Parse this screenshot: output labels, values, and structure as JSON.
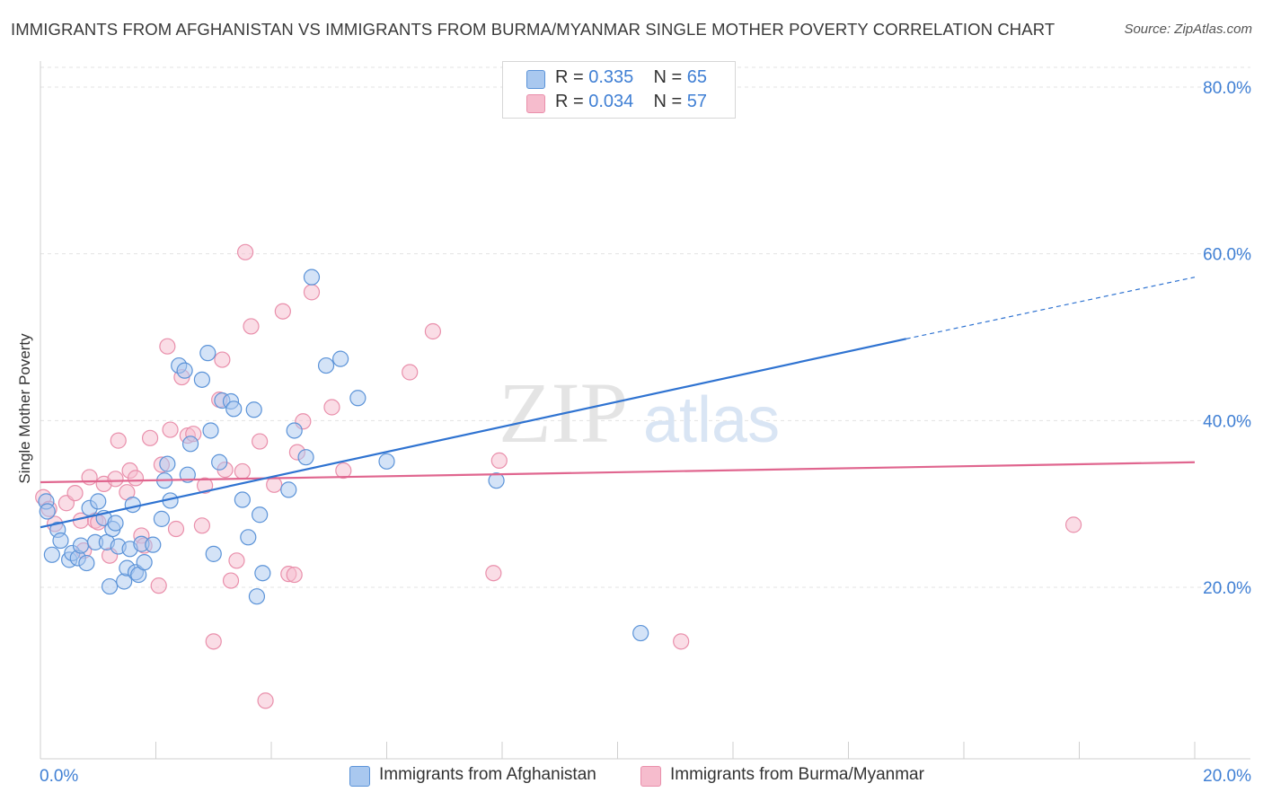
{
  "title": "IMMIGRANTS FROM AFGHANISTAN VS IMMIGRANTS FROM BURMA/MYANMAR SINGLE MOTHER POVERTY CORRELATION CHART",
  "source": "Source: ZipAtlas.com",
  "watermark": {
    "zip": "ZIP",
    "atlas": "atlas"
  },
  "legend": {
    "rows": [
      {
        "r_label": "R =",
        "r_value": "0.335",
        "n_label": "N =",
        "n_value": "65"
      },
      {
        "r_label": "R =",
        "r_value": "0.034",
        "n_label": "N =",
        "n_value": "57"
      }
    ]
  },
  "colors": {
    "blue_fill": "#a9c8ef",
    "blue_stroke": "#5b93d8",
    "blue_line": "#2f73d1",
    "pink_fill": "#f6bccd",
    "pink_stroke": "#e98fab",
    "pink_line": "#e0668f",
    "axis_text": "#3f7fd4",
    "grid": "#e3e3e3"
  },
  "chart_data": {
    "type": "scatter",
    "title": "IMMIGRANTS FROM AFGHANISTAN VS IMMIGRANTS FROM BURMA/MYANMAR SINGLE MOTHER POVERTY CORRELATION CHART",
    "xlabel": "",
    "ylabel": "Single Mother Poverty",
    "xlim": [
      0,
      20
    ],
    "ylim": [
      0,
      82
    ],
    "x_tick_labels": [
      "0.0%",
      "20.0%"
    ],
    "y_ticks": [
      20,
      40,
      60,
      80
    ],
    "y_tick_labels": [
      "20.0%",
      "40.0%",
      "60.0%",
      "80.0%"
    ],
    "grid": true,
    "legend_position": "top-center",
    "series": [
      {
        "name": "Immigrants from Afghanistan",
        "color": "blue",
        "R": 0.335,
        "N": 65,
        "trend": {
          "x0": 0,
          "y0": 27.2,
          "x1": 15.0,
          "y1": 49.8,
          "dashed_to_x": 20.0,
          "dashed_to_y": 57.2
        },
        "points": [
          [
            0.1,
            30.3
          ],
          [
            0.12,
            29.1
          ],
          [
            0.2,
            23.9
          ],
          [
            0.3,
            26.9
          ],
          [
            0.35,
            25.6
          ],
          [
            0.5,
            23.3
          ],
          [
            0.55,
            24.1
          ],
          [
            0.65,
            23.5
          ],
          [
            0.7,
            25.0
          ],
          [
            0.8,
            22.9
          ],
          [
            0.85,
            29.5
          ],
          [
            0.95,
            25.4
          ],
          [
            1.0,
            30.3
          ],
          [
            1.1,
            28.3
          ],
          [
            1.15,
            25.4
          ],
          [
            1.2,
            20.1
          ],
          [
            1.25,
            27.0
          ],
          [
            1.3,
            27.7
          ],
          [
            1.35,
            24.9
          ],
          [
            1.45,
            20.7
          ],
          [
            1.5,
            22.3
          ],
          [
            1.55,
            24.6
          ],
          [
            1.6,
            29.9
          ],
          [
            1.65,
            21.8
          ],
          [
            1.7,
            21.5
          ],
          [
            1.75,
            25.2
          ],
          [
            1.8,
            23.0
          ],
          [
            1.95,
            25.1
          ],
          [
            2.1,
            28.2
          ],
          [
            2.15,
            32.8
          ],
          [
            2.2,
            34.8
          ],
          [
            2.25,
            30.4
          ],
          [
            2.4,
            46.6
          ],
          [
            2.5,
            46.0
          ],
          [
            2.55,
            33.5
          ],
          [
            2.6,
            37.2
          ],
          [
            2.8,
            44.9
          ],
          [
            2.9,
            48.1
          ],
          [
            2.95,
            38.8
          ],
          [
            3.0,
            24.0
          ],
          [
            3.1,
            35.0
          ],
          [
            3.15,
            42.4
          ],
          [
            3.3,
            42.3
          ],
          [
            3.35,
            41.4
          ],
          [
            3.5,
            30.5
          ],
          [
            3.6,
            26.0
          ],
          [
            3.7,
            41.3
          ],
          [
            3.75,
            18.9
          ],
          [
            3.8,
            28.7
          ],
          [
            3.85,
            21.7
          ],
          [
            4.3,
            31.7
          ],
          [
            4.4,
            38.8
          ],
          [
            4.6,
            35.6
          ],
          [
            4.7,
            57.2
          ],
          [
            4.95,
            46.6
          ],
          [
            5.2,
            47.4
          ],
          [
            5.5,
            42.7
          ],
          [
            6.0,
            35.1
          ],
          [
            7.9,
            32.8
          ],
          [
            10.4,
            14.5
          ]
        ]
      },
      {
        "name": "Immigrants from Burma/Myanmar",
        "color": "pink",
        "R": 0.034,
        "N": 57,
        "trend": {
          "x0": 0,
          "y0": 32.6,
          "x1": 20.0,
          "y1": 35.0
        },
        "points": [
          [
            0.05,
            30.8
          ],
          [
            0.15,
            29.4
          ],
          [
            0.25,
            27.6
          ],
          [
            0.45,
            30.1
          ],
          [
            0.6,
            31.3
          ],
          [
            0.7,
            28.0
          ],
          [
            0.75,
            24.4
          ],
          [
            0.85,
            33.2
          ],
          [
            0.95,
            28.0
          ],
          [
            1.0,
            27.8
          ],
          [
            1.1,
            32.4
          ],
          [
            1.2,
            23.8
          ],
          [
            1.3,
            33.0
          ],
          [
            1.35,
            37.6
          ],
          [
            1.5,
            31.4
          ],
          [
            1.55,
            34.0
          ],
          [
            1.65,
            33.1
          ],
          [
            1.75,
            26.2
          ],
          [
            1.8,
            25.0
          ],
          [
            1.9,
            37.9
          ],
          [
            2.05,
            20.2
          ],
          [
            2.1,
            34.7
          ],
          [
            2.2,
            48.9
          ],
          [
            2.25,
            38.9
          ],
          [
            2.35,
            27.0
          ],
          [
            2.45,
            45.2
          ],
          [
            2.55,
            38.2
          ],
          [
            2.65,
            38.4
          ],
          [
            2.8,
            27.4
          ],
          [
            2.85,
            32.2
          ],
          [
            3.0,
            13.5
          ],
          [
            3.1,
            42.5
          ],
          [
            3.15,
            47.3
          ],
          [
            3.2,
            34.1
          ],
          [
            3.3,
            20.8
          ],
          [
            3.4,
            23.2
          ],
          [
            3.5,
            33.9
          ],
          [
            3.55,
            60.2
          ],
          [
            3.65,
            51.3
          ],
          [
            3.8,
            37.5
          ],
          [
            3.9,
            6.4
          ],
          [
            4.05,
            32.3
          ],
          [
            4.2,
            53.1
          ],
          [
            4.3,
            21.6
          ],
          [
            4.4,
            21.5
          ],
          [
            4.45,
            36.2
          ],
          [
            4.55,
            39.9
          ],
          [
            4.7,
            55.4
          ],
          [
            5.05,
            41.6
          ],
          [
            5.25,
            34.0
          ],
          [
            6.4,
            45.8
          ],
          [
            6.8,
            50.7
          ],
          [
            7.85,
            21.7
          ],
          [
            7.95,
            35.2
          ],
          [
            11.1,
            13.5
          ],
          [
            17.9,
            27.5
          ]
        ]
      }
    ]
  },
  "bottom_legend": {
    "blue_label": "Immigrants from Afghanistan",
    "pink_label": "Immigrants from Burma/Myanmar"
  }
}
